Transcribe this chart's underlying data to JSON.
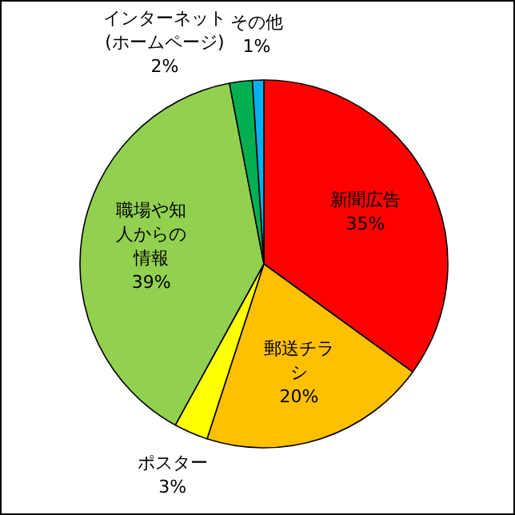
{
  "chart_data": {
    "type": "pie",
    "categories": [
      "新聞広告",
      "郵送チラシ",
      "ポスター",
      "職場や知人からの情報",
      "インターネット(ホームページ)",
      "その他"
    ],
    "values": [
      35,
      20,
      3,
      39,
      2,
      1
    ],
    "value_labels": [
      "35%",
      "20%",
      "3%",
      "39%",
      "2%",
      "1%"
    ],
    "colors": [
      "#ff0000",
      "#ffc000",
      "#ffff00",
      "#92d050",
      "#00b050",
      "#00b0f0"
    ]
  }
}
